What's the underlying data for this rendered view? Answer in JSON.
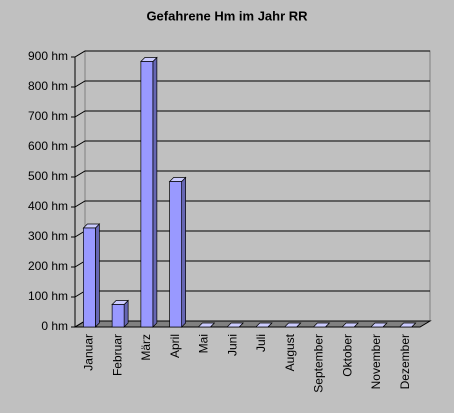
{
  "chart_data": {
    "type": "bar3d",
    "title": "Gefahrene Hm im Jahr RR",
    "categories": [
      "Januar",
      "Februar",
      "März",
      "April",
      "Mai",
      "Juni",
      "Juli",
      "August",
      "September",
      "Oktober",
      "November",
      "Dezember"
    ],
    "values": [
      330,
      75,
      885,
      485,
      0,
      0,
      0,
      0,
      0,
      0,
      0,
      0
    ],
    "color": "#9999ff",
    "ylim": [
      0,
      900
    ],
    "yticks": [
      {
        "value": 0,
        "label": "0 hm"
      },
      {
        "value": 100,
        "label": "100 hm"
      },
      {
        "value": 200,
        "label": "200 hm"
      },
      {
        "value": 300,
        "label": "300 hm"
      },
      {
        "value": 400,
        "label": "400 hm"
      },
      {
        "value": 500,
        "label": "500 hm"
      },
      {
        "value": 600,
        "label": "600 hm"
      },
      {
        "value": 700,
        "label": "700 hm"
      },
      {
        "value": 800,
        "label": "800 hm"
      },
      {
        "value": 900,
        "label": "900 hm"
      }
    ],
    "grid": true
  }
}
